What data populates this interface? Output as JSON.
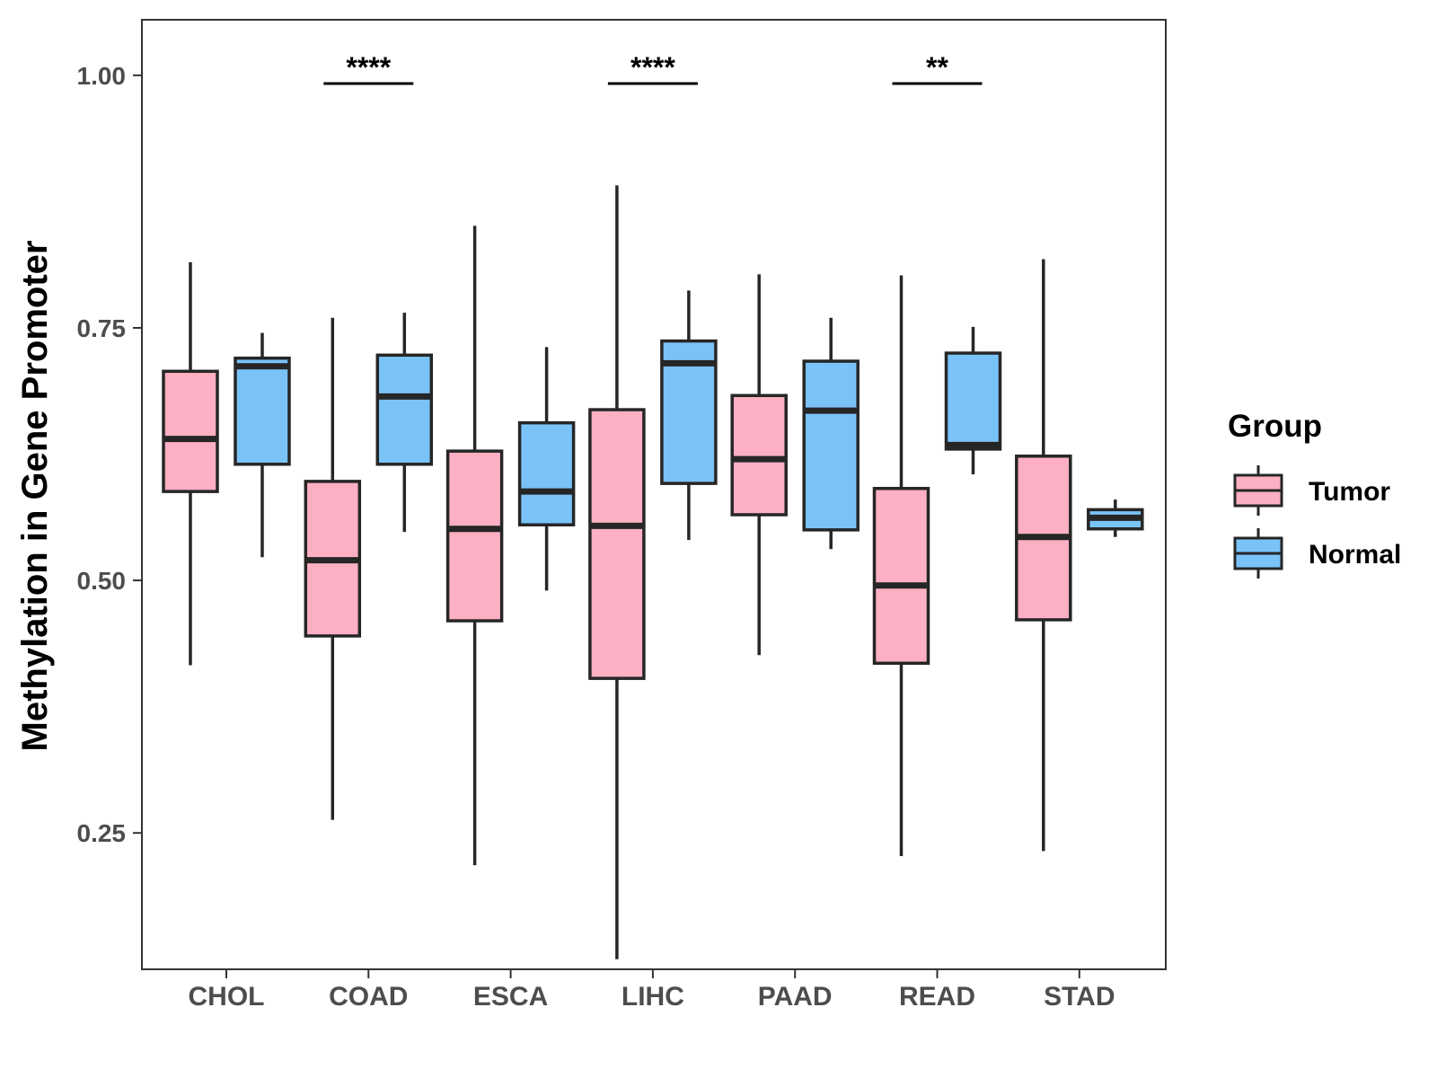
{
  "chart_data": {
    "type": "boxplot",
    "title": "",
    "xlabel": "",
    "ylabel": "Methylation in Gene Promoter",
    "ylim": [
      0.115,
      1.055
    ],
    "yticks": [
      0.25,
      0.5,
      0.75,
      1.0
    ],
    "ytick_labels": [
      "0.25",
      "0.50",
      "0.75",
      "1.00"
    ],
    "grid": false,
    "categories": [
      "CHOL",
      "COAD",
      "ESCA",
      "LIHC",
      "PAAD",
      "READ",
      "STAD"
    ],
    "series": [
      {
        "name": "Tumor",
        "color": "#FDB0C3",
        "boxes": [
          {
            "min": 0.416,
            "q1": 0.588,
            "median": 0.64,
            "q3": 0.707,
            "max": 0.815
          },
          {
            "min": 0.263,
            "q1": 0.445,
            "median": 0.52,
            "q3": 0.598,
            "max": 0.76
          },
          {
            "min": 0.218,
            "q1": 0.46,
            "median": 0.551,
            "q3": 0.628,
            "max": 0.851
          },
          {
            "min": 0.125,
            "q1": 0.403,
            "median": 0.554,
            "q3": 0.669,
            "max": 0.891
          },
          {
            "min": 0.426,
            "q1": 0.565,
            "median": 0.62,
            "q3": 0.683,
            "max": 0.803
          },
          {
            "min": 0.227,
            "q1": 0.418,
            "median": 0.495,
            "q3": 0.591,
            "max": 0.802
          },
          {
            "min": 0.232,
            "q1": 0.461,
            "median": 0.543,
            "q3": 0.623,
            "max": 0.818
          }
        ]
      },
      {
        "name": "Normal",
        "color": "#7AC3F8",
        "boxes": [
          {
            "min": 0.523,
            "q1": 0.615,
            "median": 0.712,
            "q3": 0.72,
            "max": 0.745
          },
          {
            "min": 0.548,
            "q1": 0.615,
            "median": 0.682,
            "q3": 0.723,
            "max": 0.765
          },
          {
            "min": 0.49,
            "q1": 0.555,
            "median": 0.588,
            "q3": 0.656,
            "max": 0.731
          },
          {
            "min": 0.54,
            "q1": 0.596,
            "median": 0.715,
            "q3": 0.737,
            "max": 0.787
          },
          {
            "min": 0.531,
            "q1": 0.55,
            "median": 0.668,
            "q3": 0.717,
            "max": 0.76
          },
          {
            "min": 0.605,
            "q1": 0.63,
            "median": 0.634,
            "q3": 0.725,
            "max": 0.751
          },
          {
            "min": 0.543,
            "q1": 0.551,
            "median": 0.562,
            "q3": 0.57,
            "max": 0.58
          }
        ]
      }
    ],
    "significance": [
      {
        "category": "COAD",
        "label": "****"
      },
      {
        "category": "LIHC",
        "label": "****"
      },
      {
        "category": "READ",
        "label": "**"
      }
    ],
    "legend": {
      "title": "Group",
      "position": "right",
      "entries": [
        "Tumor",
        "Normal"
      ]
    }
  }
}
